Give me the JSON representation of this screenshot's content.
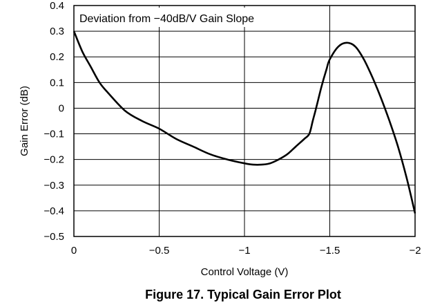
{
  "chart_data": {
    "type": "line",
    "title": "",
    "annotation": "Deviation from −40dB/V Gain Slope",
    "xlabel": "Control Voltage (V)",
    "ylabel": "Gain Error (dB)",
    "xlim": [
      0,
      -2
    ],
    "ylim": [
      -0.5,
      0.4
    ],
    "x_ticks": [
      0,
      -0.5,
      -1,
      -1.5,
      -2
    ],
    "x_tick_labels": [
      "0",
      "−0.5",
      "−1",
      "−1.5",
      "−2"
    ],
    "y_ticks": [
      0.4,
      0.3,
      0.2,
      0.1,
      0,
      -0.1,
      -0.2,
      -0.3,
      -0.4,
      -0.5
    ],
    "y_tick_labels": [
      "0.4",
      "0.3",
      "0.2",
      "0.1",
      "0",
      "−0.1",
      "−0.2",
      "−0.3",
      "−0.4",
      "−0.5"
    ],
    "grid": true,
    "series": [
      {
        "x": [
          0,
          -0.05,
          -0.1,
          -0.15,
          -0.2,
          -0.3,
          -0.4,
          -0.5,
          -0.6,
          -0.7,
          -0.8,
          -0.9,
          -1.0,
          -1.05,
          -1.1,
          -1.15,
          -1.2,
          -1.25,
          -1.3,
          -1.35,
          -1.38,
          -1.4,
          -1.42,
          -1.45,
          -1.48,
          -1.5,
          -1.55,
          -1.6,
          -1.65,
          -1.7,
          -1.75,
          -1.8,
          -1.85,
          -1.9,
          -1.95,
          -2.0
        ],
        "y": [
          0.3,
          0.22,
          0.16,
          0.1,
          0.06,
          -0.01,
          -0.05,
          -0.08,
          -0.12,
          -0.15,
          -0.18,
          -0.2,
          -0.215,
          -0.22,
          -0.22,
          -0.215,
          -0.2,
          -0.18,
          -0.15,
          -0.12,
          -0.1,
          -0.05,
          0.0,
          0.08,
          0.15,
          0.19,
          0.24,
          0.255,
          0.24,
          0.19,
          0.12,
          0.04,
          -0.05,
          -0.15,
          -0.27,
          -0.41
        ]
      }
    ]
  },
  "caption": "Figure 17. Typical Gain Error Plot",
  "colors": {
    "line": "#000000",
    "grid": "#000000",
    "background": "#ffffff"
  }
}
